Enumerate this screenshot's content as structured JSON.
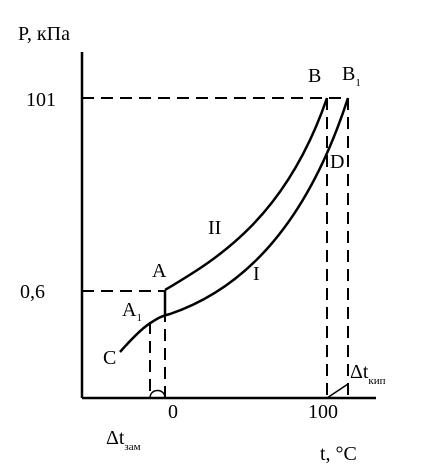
{
  "axes": {
    "y_label": "P, кПа",
    "y_high": "101",
    "y_low": "0,6",
    "x_zero": "0",
    "x_hundred": "100",
    "x_label": "t, °C"
  },
  "points": {
    "A": "A",
    "A1": {
      "main": "A",
      "sub": "1"
    },
    "B": "B",
    "B1": {
      "main": "B",
      "sub": "1"
    },
    "C": "C",
    "D": "D"
  },
  "curves": {
    "upper": "II",
    "lower": "I"
  },
  "intervals": {
    "boiling": {
      "main": "Δt",
      "sub": "кип"
    },
    "freezing": {
      "main": "Δt",
      "sub": "зам"
    }
  }
}
